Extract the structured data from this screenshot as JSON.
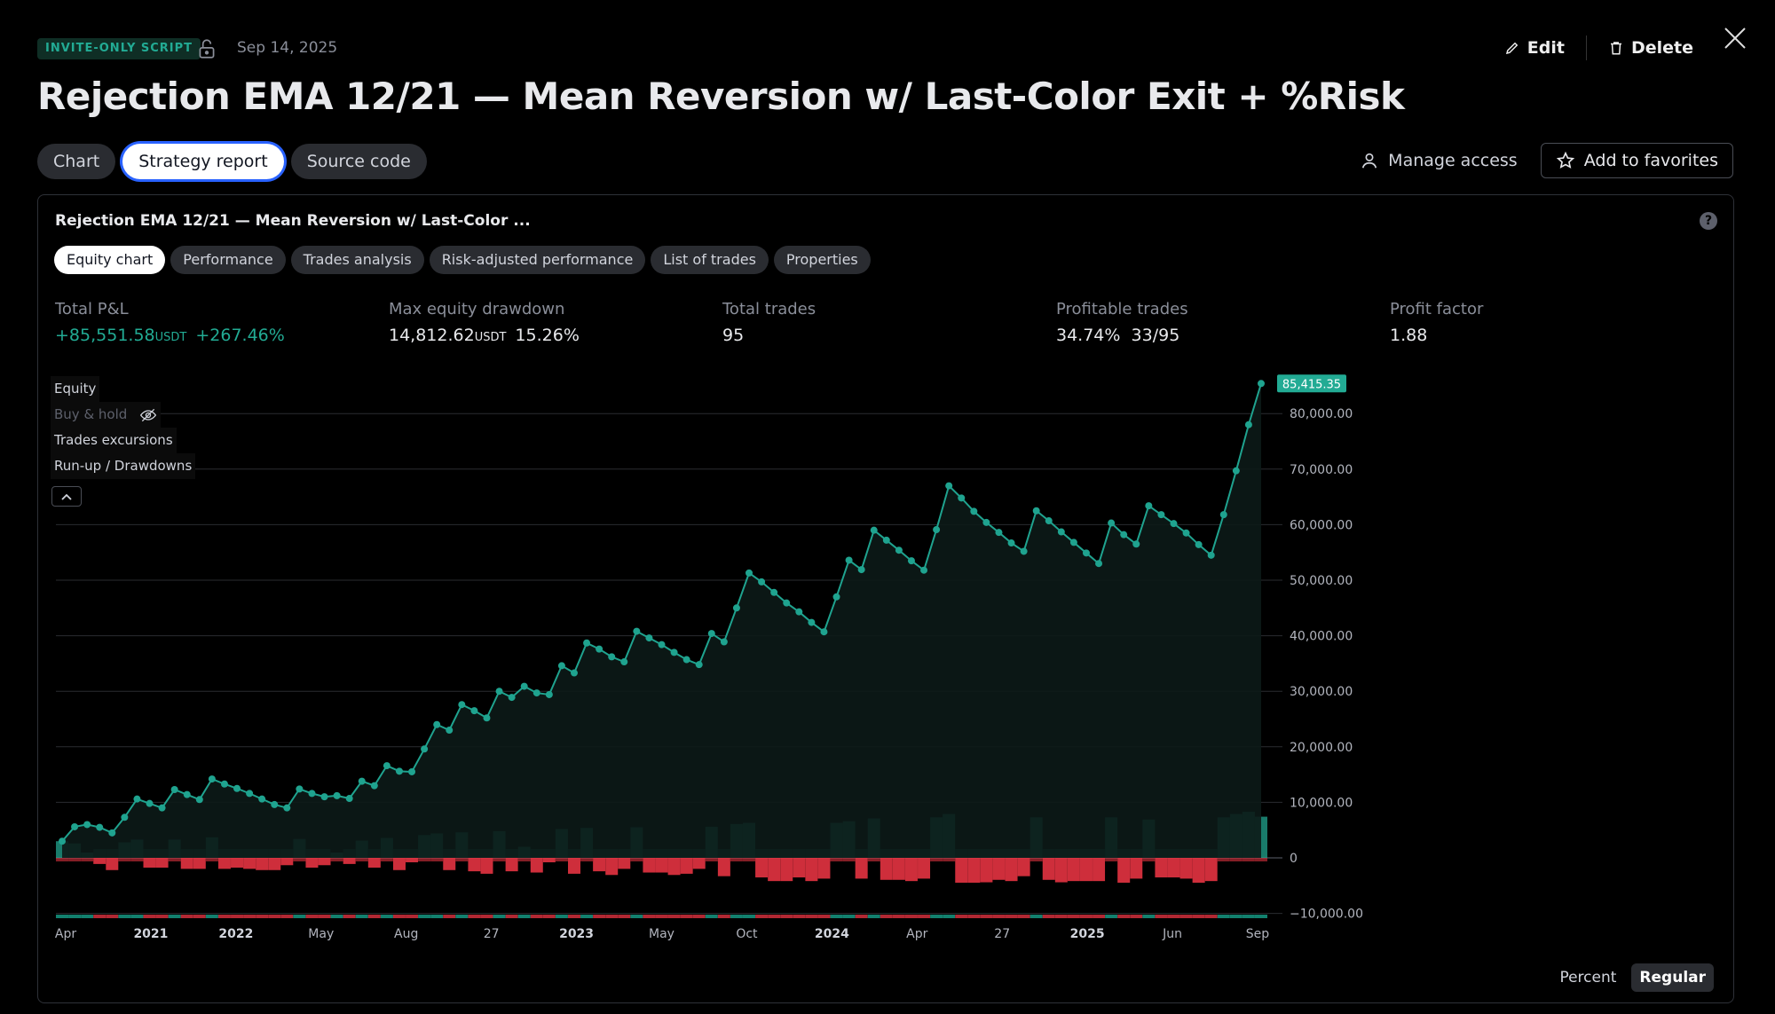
{
  "header": {
    "badge": "INVITE-ONLY SCRIPT",
    "date": "Sep 14, 2025",
    "edit_label": "Edit",
    "delete_label": "Delete",
    "title": "Rejection EMA 12/21 — Mean Reversion w/ Last-Color Exit + %Risk"
  },
  "tabs": [
    {
      "label": "Chart"
    },
    {
      "label": "Strategy report"
    },
    {
      "label": "Source code"
    }
  ],
  "actions": {
    "manage": "Manage access",
    "favorites": "Add to favorites"
  },
  "report": {
    "title": "Rejection EMA 12/21 — Mean Reversion w/ Last-Color ...",
    "help": "?",
    "subtabs": [
      {
        "label": "Equity chart"
      },
      {
        "label": "Performance"
      },
      {
        "label": "Trades analysis"
      },
      {
        "label": "Risk-adjusted performance"
      },
      {
        "label": "List of trades"
      },
      {
        "label": "Properties"
      }
    ],
    "metrics": [
      {
        "label": "Total P&L",
        "value": "+85,551.58",
        "unit": "USDT",
        "extra": "+267.46%"
      },
      {
        "label": "Max equity drawdown",
        "value": "14,812.62",
        "unit": "USDT",
        "extra": "15.26%"
      },
      {
        "label": "Total trades",
        "value": "95"
      },
      {
        "label": "Profitable trades",
        "value": "34.74%  33/95"
      },
      {
        "label": "Profit factor",
        "value": "1.88"
      }
    ],
    "legend": [
      {
        "label": "Equity"
      },
      {
        "label": "Buy & hold"
      },
      {
        "label": "Trades excursions"
      },
      {
        "label": "Run-up / Drawdowns"
      }
    ],
    "scale": {
      "percent": "Percent",
      "regular": "Regular"
    }
  },
  "colors": {
    "positive": "#22ab94",
    "negative": "#f23645",
    "equity_line": "#1fa38f"
  },
  "chart_data": {
    "type": "line",
    "title": "",
    "ylim": [
      -10000,
      85000
    ],
    "y_ticks": [
      -10000,
      0,
      10000,
      20000,
      30000,
      40000,
      50000,
      60000,
      70000,
      80000
    ],
    "y_tick_labels": [
      "−10,000.00",
      "0",
      "10,000.00",
      "20,000.00",
      "30,000.00",
      "40,000.00",
      "50,000.00",
      "60,000.00",
      "70,000.00",
      "80,000.00"
    ],
    "x_tick_labels": [
      {
        "label": "Apr",
        "bold": false
      },
      {
        "label": "2021",
        "bold": true
      },
      {
        "label": "2022",
        "bold": true
      },
      {
        "label": "May",
        "bold": false
      },
      {
        "label": "Aug",
        "bold": false
      },
      {
        "label": "27",
        "bold": false
      },
      {
        "label": "2023",
        "bold": true
      },
      {
        "label": "May",
        "bold": false
      },
      {
        "label": "Oct",
        "bold": false
      },
      {
        "label": "2024",
        "bold": true
      },
      {
        "label": "Apr",
        "bold": false
      },
      {
        "label": "27",
        "bold": false
      },
      {
        "label": "2025",
        "bold": true
      },
      {
        "label": "Jun",
        "bold": false
      },
      {
        "label": "Sep",
        "bold": false
      }
    ],
    "last_value_label": "85,415.35",
    "equity": [
      3000,
      5600,
      6000,
      5500,
      4500,
      7300,
      10600,
      9800,
      9000,
      12300,
      11400,
      10500,
      14200,
      13300,
      12500,
      11600,
      10600,
      9600,
      9000,
      12400,
      11600,
      11000,
      11200,
      10700,
      13800,
      13000,
      16600,
      15600,
      15500,
      19600,
      24000,
      23000,
      27600,
      26500,
      25200,
      30000,
      28900,
      30900,
      29700,
      29400,
      34600,
      33300,
      38700,
      37600,
      36200,
      35300,
      40800,
      39600,
      38400,
      37000,
      35700,
      34800,
      40400,
      38900,
      45000,
      51300,
      49700,
      47800,
      45900,
      44300,
      42400,
      40700,
      47000,
      53600,
      51900,
      59000,
      57200,
      55400,
      53500,
      51800,
      59100,
      67000,
      64800,
      62400,
      60400,
      58600,
      56700,
      55200,
      62500,
      60700,
      58700,
      56800,
      54900,
      53000,
      60300,
      58200,
      56500,
      63400,
      61800,
      60200,
      58500,
      56400,
      54500,
      61800,
      69700,
      78000,
      85415
    ]
  }
}
